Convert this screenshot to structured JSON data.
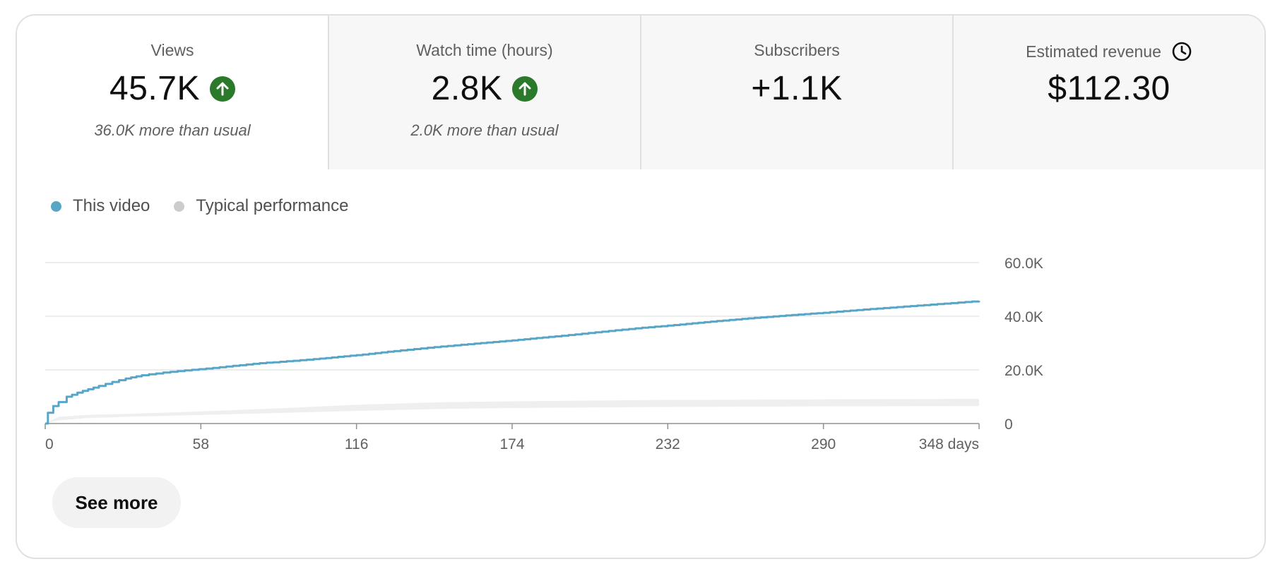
{
  "metrics": [
    {
      "label": "Views",
      "value": "45.7K",
      "trend": "up",
      "sub": "36.0K more than usual"
    },
    {
      "label": "Watch time (hours)",
      "value": "2.8K",
      "trend": "up",
      "sub": "2.0K more than usual"
    },
    {
      "label": "Subscribers",
      "value": "+1.1K",
      "trend": "",
      "sub": ""
    },
    {
      "label": "Estimated revenue",
      "value": "$112.30",
      "trend": "",
      "sub": "",
      "icon": "clock-icon"
    }
  ],
  "legend": {
    "this_video": "This video",
    "typical": "Typical performance"
  },
  "colors": {
    "this_video": "#58a6c7",
    "typical_band": "#efefef",
    "typical_dot": "#cccccc",
    "trend_up": "#2b7a2b",
    "grid": "#e5e5e5",
    "axis": "#909090"
  },
  "chart_data": {
    "type": "line",
    "xlabel": "",
    "ylabel": "",
    "xlim": [
      0,
      348
    ],
    "ylim": [
      0,
      60000
    ],
    "x_ticks": [
      0,
      58,
      116,
      174,
      232,
      290,
      348
    ],
    "x_tick_labels": [
      "0",
      "58",
      "116",
      "174",
      "232",
      "290",
      "348 days"
    ],
    "y_ticks": [
      0,
      20000,
      40000,
      60000
    ],
    "y_tick_labels": [
      "0",
      "20.0K",
      "40.0K",
      "60.0K"
    ],
    "grid": true,
    "series": [
      {
        "name": "This video",
        "x": [
          0,
          1,
          3,
          5,
          8,
          12,
          16,
          20,
          25,
          30,
          36,
          44,
          52,
          60,
          70,
          80,
          90,
          100,
          116,
          130,
          145,
          160,
          174,
          190,
          205,
          220,
          232,
          248,
          262,
          276,
          290,
          305,
          320,
          335,
          348
        ],
        "y": [
          0,
          4000,
          6500,
          8000,
          10000,
          11500,
          12800,
          14000,
          15500,
          16800,
          18000,
          19000,
          19800,
          20500,
          21500,
          22500,
          23200,
          24000,
          25500,
          27000,
          28500,
          29800,
          31000,
          32500,
          34000,
          35500,
          36500,
          38000,
          39200,
          40300,
          41300,
          42500,
          43600,
          44700,
          45700
        ]
      },
      {
        "name": "Typical performance",
        "x": [
          0,
          5,
          15,
          30,
          58,
          90,
          116,
          150,
          174,
          232,
          290,
          348
        ],
        "y_low": [
          0,
          1200,
          2000,
          2500,
          3200,
          4000,
          4700,
          5500,
          5800,
          6200,
          6400,
          6500
        ],
        "y_high": [
          0,
          2500,
          3200,
          3600,
          4500,
          5800,
          7000,
          8000,
          8300,
          8800,
          9000,
          9200
        ]
      }
    ]
  },
  "buttons": {
    "see_more": "See more"
  }
}
